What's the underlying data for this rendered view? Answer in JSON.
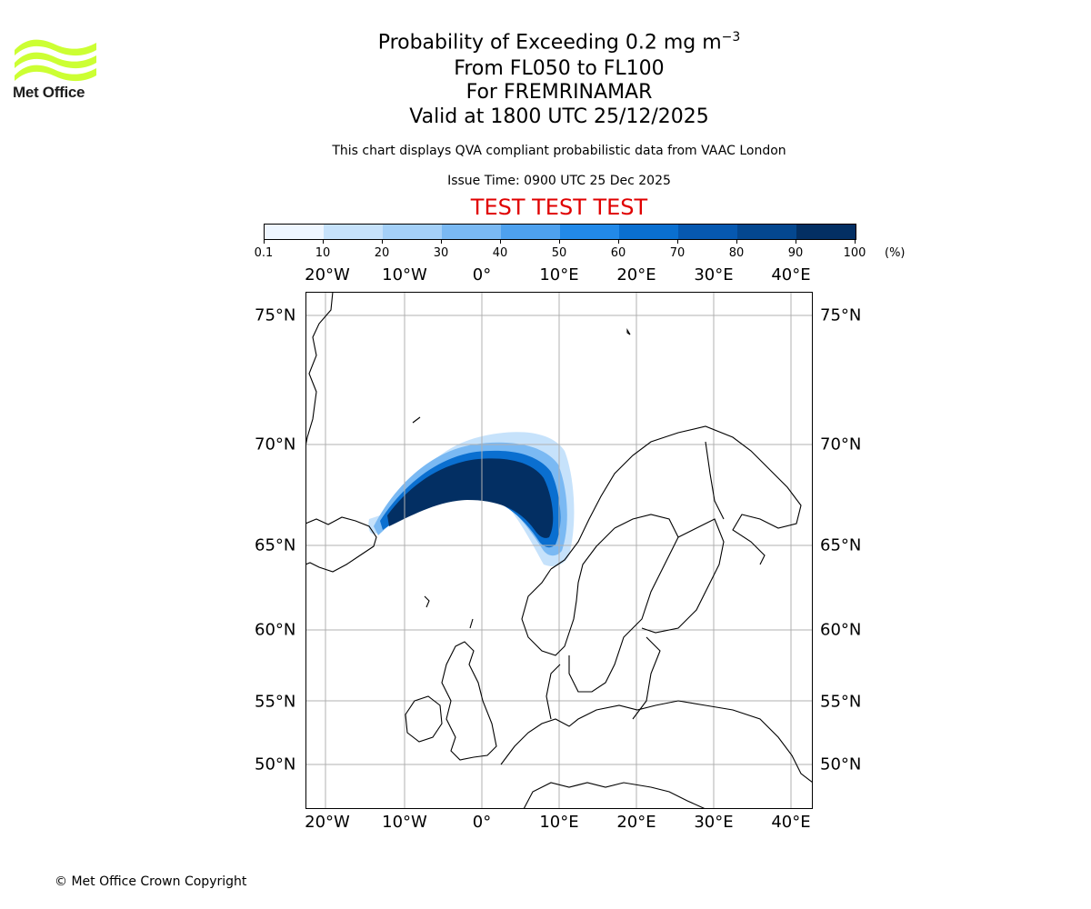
{
  "logo": {
    "text": "Met Office",
    "color": "#ccff33"
  },
  "title": {
    "line1_main": "Probability of Exceeding 0.2 mg m",
    "line1_exp": "−3",
    "line2": "From FL050 to FL100",
    "line3": "For FREMRINAMAR",
    "line4": "Valid at 1800 UTC 25/12/2025"
  },
  "subtitle": "This chart displays QVA compliant probabilistic data from VAAC London",
  "issue_time": "Issue Time: 0900 UTC 25 Dec 2025",
  "test_banner": "TEST TEST TEST",
  "colorbar": {
    "ticks": [
      "0.1",
      "10",
      "20",
      "30",
      "40",
      "50",
      "60",
      "70",
      "80",
      "90",
      "100"
    ],
    "unit": "(%)",
    "colors": [
      "#eef6ff",
      "#c6e2fb",
      "#a4d0f8",
      "#7ab9f3",
      "#4ea1ee",
      "#2289e8",
      "#0a6fd0",
      "#0658b0",
      "#04478f",
      "#032f63"
    ]
  },
  "map": {
    "lon_labels": [
      "20°W",
      "10°W",
      "0°",
      "10°E",
      "20°E",
      "30°E",
      "40°E"
    ],
    "lat_labels": [
      "75°N",
      "70°N",
      "65°N",
      "60°N",
      "55°N",
      "50°N"
    ],
    "gridline_color": "#b0b0b0",
    "coast_color": "#000000"
  },
  "copyright": "© Met Office Crown Copyright"
}
